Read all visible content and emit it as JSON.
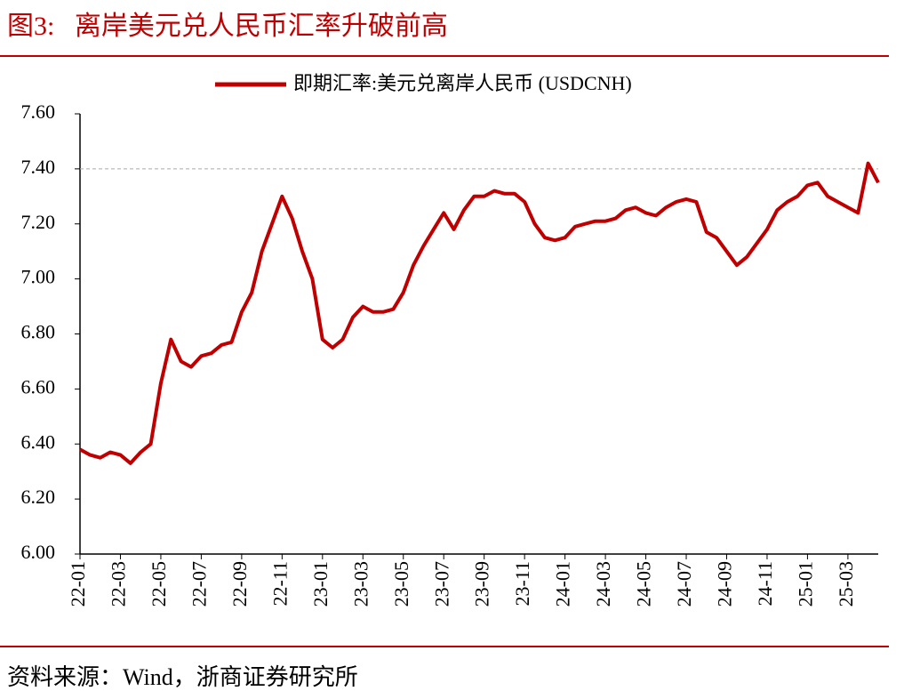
{
  "chart_data": {
    "type": "line",
    "title": "图3:   离岸美元兑人民币汇率升破前高",
    "source": "资料来源：Wind，浙商证券研究所",
    "categories": [
      "22-01",
      null,
      null,
      null,
      "22-03",
      null,
      null,
      null,
      "22-05",
      null,
      null,
      null,
      "22-07",
      null,
      null,
      null,
      "22-09",
      null,
      null,
      null,
      "22-11",
      null,
      null,
      null,
      "23-01",
      null,
      null,
      null,
      "23-03",
      null,
      null,
      null,
      "23-05",
      null,
      null,
      null,
      "23-07",
      null,
      null,
      null,
      "23-09",
      null,
      null,
      null,
      "23-11",
      null,
      null,
      null,
      "24-01",
      null,
      null,
      null,
      "24-03",
      null,
      null,
      null,
      "24-05",
      null,
      null,
      null,
      "24-07",
      null,
      null,
      null,
      "24-09",
      null,
      null,
      null,
      "24-11",
      null,
      null,
      null,
      "25-01",
      null,
      null,
      null,
      "25-03",
      null,
      null,
      null
    ],
    "series": [
      {
        "name": "即期汇率:美元兑离岸人民币 (USDCNH)",
        "color": "#c00000",
        "values": [
          6.38,
          6.36,
          6.35,
          6.37,
          6.36,
          6.33,
          6.37,
          6.4,
          6.62,
          6.78,
          6.7,
          6.68,
          6.72,
          6.73,
          6.76,
          6.77,
          6.88,
          6.95,
          7.1,
          7.2,
          7.3,
          7.22,
          7.1,
          7.0,
          6.78,
          6.75,
          6.78,
          6.86,
          6.9,
          6.88,
          6.88,
          6.89,
          6.95,
          7.05,
          7.12,
          7.18,
          7.24,
          7.18,
          7.25,
          7.3,
          7.3,
          7.32,
          7.31,
          7.31,
          7.28,
          7.2,
          7.15,
          7.14,
          7.15,
          7.19,
          7.2,
          7.21,
          7.21,
          7.22,
          7.25,
          7.26,
          7.24,
          7.23,
          7.26,
          7.28,
          7.29,
          7.28,
          7.17,
          7.15,
          7.1,
          7.05,
          7.08,
          7.13,
          7.18,
          7.25,
          7.28,
          7.3,
          7.34,
          7.35,
          7.3,
          7.28,
          7.26,
          7.24,
          7.42,
          7.35
        ]
      }
    ],
    "ylim": [
      6,
      7.6
    ],
    "yticks": [
      {
        "value": 6,
        "label": "6.00"
      },
      {
        "value": 6.2,
        "label": "6.20"
      },
      {
        "value": 6.4,
        "label": "6.40"
      },
      {
        "value": 6.6,
        "label": "6.60"
      },
      {
        "value": 6.8,
        "label": "6.80"
      },
      {
        "value": 7,
        "label": "7.00"
      },
      {
        "value": 7.2,
        "label": "7.20"
      },
      {
        "value": 7.4,
        "label": "7.40"
      },
      {
        "value": 7.6,
        "label": "7.60"
      }
    ],
    "ref_line": 7.4,
    "grid": false
  }
}
